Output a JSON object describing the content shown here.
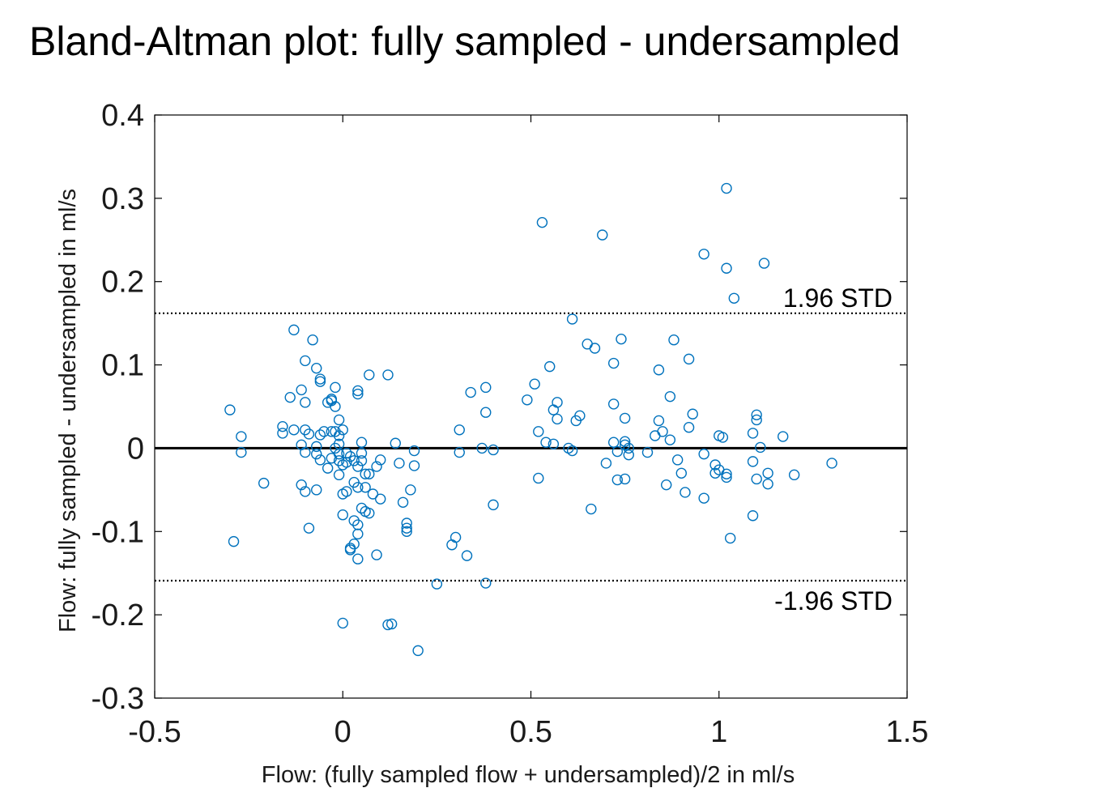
{
  "title": "Bland-Altman plot: fully sampled - undersampled",
  "chart_data": {
    "type": "scatter",
    "title": "Bland-Altman plot: fully sampled - undersampled",
    "xlabel": "Flow: (fully sampled flow + undersampled)/2  in ml/s",
    "ylabel": "Flow: fully sampled - undersampled in ml/s",
    "xlim": [
      -0.5,
      1.5
    ],
    "ylim": [
      -0.3,
      0.4
    ],
    "xticks": [
      -0.5,
      0,
      0.5,
      1,
      1.5
    ],
    "xtick_labels": [
      "-0.5",
      "0",
      "0.5",
      "1",
      "1.5"
    ],
    "yticks": [
      -0.3,
      -0.2,
      -0.1,
      0,
      0.1,
      0.2,
      0.3,
      0.4
    ],
    "ytick_labels": [
      "-0.3",
      "-0.2",
      "-0.1",
      "0",
      "0.1",
      "0.2",
      "0.3",
      "0.4"
    ],
    "grid": false,
    "marker_color": "#0072BD",
    "reference_lines": [
      {
        "y": 0.162,
        "style": "dotted",
        "label": "1.96 STD"
      },
      {
        "y": 0.0,
        "style": "solid",
        "label": ""
      },
      {
        "y": -0.159,
        "style": "dotted",
        "label": "-1.96 STD"
      }
    ],
    "points": [
      [
        -0.3,
        0.046
      ],
      [
        -0.29,
        -0.112
      ],
      [
        -0.27,
        0.014
      ],
      [
        -0.27,
        -0.005
      ],
      [
        -0.21,
        -0.042
      ],
      [
        -0.16,
        0.026
      ],
      [
        -0.16,
        0.018
      ],
      [
        -0.14,
        0.061
      ],
      [
        -0.13,
        0.142
      ],
      [
        -0.13,
        0.022
      ],
      [
        -0.11,
        0.07
      ],
      [
        -0.11,
        0.004
      ],
      [
        -0.11,
        -0.044
      ],
      [
        -0.1,
        0.105
      ],
      [
        -0.1,
        0.055
      ],
      [
        -0.1,
        0.022
      ],
      [
        -0.1,
        -0.052
      ],
      [
        -0.09,
        -0.096
      ],
      [
        -0.1,
        -0.005
      ],
      [
        -0.09,
        0.017
      ],
      [
        -0.08,
        0.13
      ],
      [
        -0.07,
        0.002
      ],
      [
        -0.07,
        -0.007
      ],
      [
        -0.07,
        -0.05
      ],
      [
        -0.07,
        0.096
      ],
      [
        -0.06,
        0.08
      ],
      [
        -0.06,
        0.083
      ],
      [
        -0.06,
        0.016
      ],
      [
        -0.06,
        -0.014
      ],
      [
        -0.05,
        0.02
      ],
      [
        -0.04,
        0.055
      ],
      [
        -0.04,
        -0.024
      ],
      [
        -0.03,
        0.057
      ],
      [
        -0.03,
        0.02
      ],
      [
        -0.03,
        0.059
      ],
      [
        -0.03,
        -0.012
      ],
      [
        -0.02,
        0.05
      ],
      [
        -0.02,
        0.073
      ],
      [
        -0.02,
        0.0
      ],
      [
        -0.02,
        0.02
      ],
      [
        -0.01,
        0.034
      ],
      [
        -0.01,
        0.015
      ],
      [
        -0.01,
        0.005
      ],
      [
        -0.01,
        -0.007
      ],
      [
        -0.01,
        -0.015
      ],
      [
        -0.01,
        -0.032
      ],
      [
        0.0,
        0.022
      ],
      [
        0.0,
        -0.02
      ],
      [
        0.0,
        -0.055
      ],
      [
        0.0,
        -0.08
      ],
      [
        0.0,
        -0.21
      ],
      [
        0.01,
        -0.006
      ],
      [
        0.01,
        -0.017
      ],
      [
        0.01,
        -0.052
      ],
      [
        0.02,
        -0.01
      ],
      [
        0.02,
        -0.12
      ],
      [
        0.02,
        -0.122
      ],
      [
        0.03,
        -0.041
      ],
      [
        0.03,
        -0.015
      ],
      [
        0.03,
        -0.087
      ],
      [
        0.03,
        -0.115
      ],
      [
        0.04,
        0.069
      ],
      [
        0.04,
        0.065
      ],
      [
        0.04,
        -0.022
      ],
      [
        0.04,
        -0.047
      ],
      [
        0.04,
        -0.092
      ],
      [
        0.04,
        -0.103
      ],
      [
        0.04,
        -0.133
      ],
      [
        0.05,
        -0.006
      ],
      [
        0.05,
        -0.015
      ],
      [
        0.05,
        0.007
      ],
      [
        0.05,
        -0.072
      ],
      [
        0.06,
        -0.031
      ],
      [
        0.06,
        -0.047
      ],
      [
        0.06,
        -0.076
      ],
      [
        0.07,
        0.088
      ],
      [
        0.07,
        -0.031
      ],
      [
        0.07,
        -0.078
      ],
      [
        0.08,
        -0.055
      ],
      [
        0.09,
        -0.022
      ],
      [
        0.09,
        -0.128
      ],
      [
        0.1,
        -0.014
      ],
      [
        0.1,
        -0.061
      ],
      [
        0.12,
        -0.212
      ],
      [
        0.12,
        0.088
      ],
      [
        0.13,
        -0.211
      ],
      [
        0.14,
        0.006
      ],
      [
        0.15,
        -0.018
      ],
      [
        0.16,
        -0.065
      ],
      [
        0.17,
        -0.096
      ],
      [
        0.17,
        -0.1
      ],
      [
        0.17,
        -0.09
      ],
      [
        0.18,
        -0.05
      ],
      [
        0.19,
        -0.003
      ],
      [
        0.19,
        -0.021
      ],
      [
        0.2,
        -0.243
      ],
      [
        0.25,
        -0.163
      ],
      [
        0.29,
        -0.116
      ],
      [
        0.3,
        -0.107
      ],
      [
        0.31,
        0.022
      ],
      [
        0.31,
        -0.005
      ],
      [
        0.33,
        -0.129
      ],
      [
        0.34,
        0.067
      ],
      [
        0.37,
        0.0
      ],
      [
        0.38,
        0.043
      ],
      [
        0.38,
        0.073
      ],
      [
        0.38,
        -0.162
      ],
      [
        0.4,
        -0.002
      ],
      [
        0.4,
        -0.068
      ],
      [
        0.49,
        0.058
      ],
      [
        0.51,
        0.077
      ],
      [
        0.52,
        0.02
      ],
      [
        0.52,
        -0.036
      ],
      [
        0.53,
        0.271
      ],
      [
        0.54,
        0.007
      ],
      [
        0.55,
        0.098
      ],
      [
        0.56,
        0.046
      ],
      [
        0.56,
        0.005
      ],
      [
        0.57,
        0.055
      ],
      [
        0.57,
        0.035
      ],
      [
        0.6,
        0.0
      ],
      [
        0.61,
        -0.003
      ],
      [
        0.61,
        0.155
      ],
      [
        0.62,
        0.033
      ],
      [
        0.63,
        0.039
      ],
      [
        0.65,
        0.125
      ],
      [
        0.66,
        -0.073
      ],
      [
        0.67,
        0.12
      ],
      [
        0.69,
        0.256
      ],
      [
        0.7,
        -0.018
      ],
      [
        0.72,
        0.102
      ],
      [
        0.72,
        0.053
      ],
      [
        0.72,
        0.007
      ],
      [
        0.73,
        -0.004
      ],
      [
        0.73,
        -0.038
      ],
      [
        0.74,
        0.131
      ],
      [
        0.75,
        0.036
      ],
      [
        0.75,
        0.008
      ],
      [
        0.75,
        0.004
      ],
      [
        0.76,
        0.0
      ],
      [
        0.75,
        -0.037
      ],
      [
        0.76,
        -0.008
      ],
      [
        0.81,
        -0.005
      ],
      [
        0.83,
        0.015
      ],
      [
        0.84,
        0.033
      ],
      [
        0.84,
        0.094
      ],
      [
        0.85,
        0.02
      ],
      [
        0.86,
        -0.044
      ],
      [
        0.87,
        0.062
      ],
      [
        0.87,
        0.01
      ],
      [
        0.88,
        0.13
      ],
      [
        0.89,
        -0.014
      ],
      [
        0.9,
        -0.03
      ],
      [
        0.91,
        -0.053
      ],
      [
        0.92,
        0.025
      ],
      [
        0.92,
        0.107
      ],
      [
        0.93,
        0.041
      ],
      [
        0.96,
        0.233
      ],
      [
        0.96,
        -0.007
      ],
      [
        0.96,
        -0.06
      ],
      [
        0.99,
        -0.03
      ],
      [
        0.99,
        -0.02
      ],
      [
        1.0,
        0.015
      ],
      [
        1.0,
        -0.026
      ],
      [
        1.01,
        0.013
      ],
      [
        1.02,
        -0.031
      ],
      [
        1.02,
        -0.035
      ],
      [
        1.02,
        0.216
      ],
      [
        1.02,
        0.312
      ],
      [
        1.03,
        -0.108
      ],
      [
        1.04,
        0.18
      ],
      [
        1.09,
        0.018
      ],
      [
        1.09,
        -0.016
      ],
      [
        1.09,
        -0.081
      ],
      [
        1.1,
        0.04
      ],
      [
        1.1,
        -0.037
      ],
      [
        1.1,
        0.034
      ],
      [
        1.11,
        0.001
      ],
      [
        1.12,
        0.222
      ],
      [
        1.13,
        -0.03
      ],
      [
        1.13,
        -0.043
      ],
      [
        1.17,
        0.014
      ],
      [
        1.2,
        -0.032
      ],
      [
        1.3,
        -0.018
      ]
    ]
  }
}
